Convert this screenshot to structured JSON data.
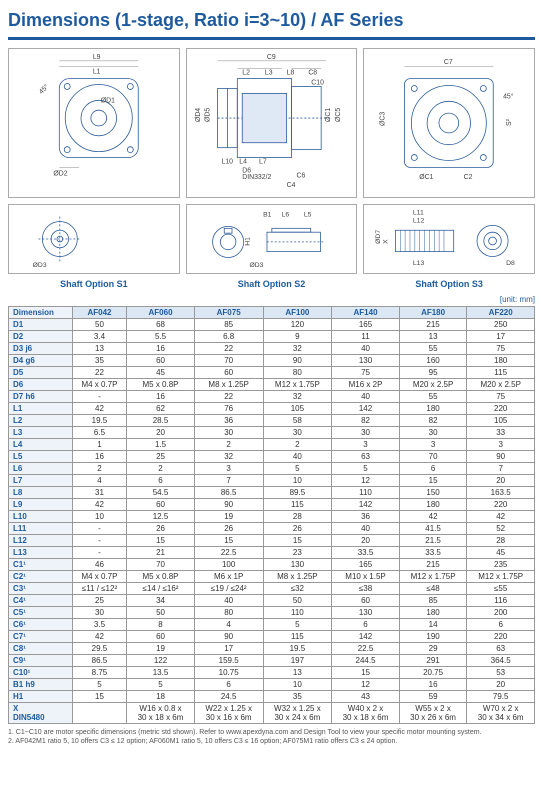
{
  "title": "Dimensions (1-stage, Ratio i=3~10) / AF Series",
  "unit_label": "[unit: mm]",
  "diagram_labels": {
    "left_top1": "L9",
    "left_top2": "L1",
    "left_d1": "ØD1",
    "left_d2": "ØD2",
    "mid_c9": "C9",
    "mid_l2": "L2",
    "mid_l3": "L3",
    "mid_l8": "L8",
    "mid_c8": "C8",
    "mid_c10": "C10",
    "mid_d4": "ØD4",
    "mid_d5": "ØD5",
    "mid_d6": "D6",
    "mid_din": "DIN332/2",
    "mid_l10": "L10",
    "mid_l4": "L4",
    "mid_l7": "L7",
    "mid_c6": "C6",
    "mid_c4": "C4",
    "mid_c1": "ØC1",
    "mid_c5": "ØC5",
    "right_c7": "C7",
    "right_c3": "ØC3",
    "right_c1": "ØC1",
    "right_c2": "C2",
    "right_45": "45°"
  },
  "shaft_labels": {
    "s1": "Shaft Option S1",
    "s2": "Shaft Option S2",
    "s3": "Shaft Option S3",
    "s1_d3": "ØD3",
    "s2_b1": "B1",
    "s2_l6": "L6",
    "s2_l5": "L5",
    "s2_h1": "H1",
    "s2_d3": "ØD3",
    "s3_l11": "L11",
    "s3_l12": "L12",
    "s3_l13": "L13",
    "s3_d8": "D8",
    "s3_d7": "ØD7",
    "s3_x": "X"
  },
  "table": {
    "headers": [
      "Dimension",
      "AF042",
      "AF060",
      "AF075",
      "AF100",
      "AF140",
      "AF180",
      "AF220"
    ],
    "rows": [
      [
        "D1",
        "50",
        "68",
        "85",
        "120",
        "165",
        "215",
        "250"
      ],
      [
        "D2",
        "3.4",
        "5.5",
        "6.8",
        "9",
        "11",
        "13",
        "17"
      ],
      [
        "D3  j6",
        "13",
        "16",
        "22",
        "32",
        "40",
        "55",
        "75"
      ],
      [
        "D4  g6",
        "35",
        "60",
        "70",
        "90",
        "130",
        "160",
        "180"
      ],
      [
        "D5",
        "22",
        "45",
        "60",
        "80",
        "75",
        "95",
        "115"
      ],
      [
        "D6",
        "M4 x 0.7P",
        "M5 x 0.8P",
        "M8 x 1.25P",
        "M12 x 1.75P",
        "M16 x 2P",
        "M20 x 2.5P",
        "M20 x 2.5P"
      ],
      [
        "D7  h6",
        "-",
        "16",
        "22",
        "32",
        "40",
        "55",
        "75"
      ],
      [
        "L1",
        "42",
        "62",
        "76",
        "105",
        "142",
        "180",
        "220"
      ],
      [
        "L2",
        "19.5",
        "28.5",
        "36",
        "58",
        "82",
        "82",
        "105"
      ],
      [
        "L3",
        "6.5",
        "20",
        "30",
        "30",
        "30",
        "30",
        "33"
      ],
      [
        "L4",
        "1",
        "1.5",
        "2",
        "2",
        "3",
        "3",
        "3"
      ],
      [
        "L5",
        "16",
        "25",
        "32",
        "40",
        "63",
        "70",
        "90"
      ],
      [
        "L6",
        "2",
        "2",
        "3",
        "5",
        "5",
        "6",
        "7"
      ],
      [
        "L7",
        "4",
        "6",
        "7",
        "10",
        "12",
        "15",
        "20"
      ],
      [
        "L8",
        "31",
        "54.5",
        "86.5",
        "89.5",
        "110",
        "150",
        "163.5"
      ],
      [
        "L9",
        "42",
        "60",
        "90",
        "115",
        "142",
        "180",
        "220"
      ],
      [
        "L10",
        "10",
        "12.5",
        "19",
        "28",
        "36",
        "42",
        "42"
      ],
      [
        "L11",
        "-",
        "26",
        "26",
        "26",
        "40",
        "41.5",
        "52"
      ],
      [
        "L12",
        "-",
        "15",
        "15",
        "15",
        "20",
        "21.5",
        "28"
      ],
      [
        "L13",
        "-",
        "21",
        "22.5",
        "23",
        "33.5",
        "33.5",
        "45"
      ],
      [
        "C1¹",
        "46",
        "70",
        "100",
        "130",
        "165",
        "215",
        "235"
      ],
      [
        "C2¹",
        "M4 x 0.7P",
        "M5 x 0.8P",
        "M6 x 1P",
        "M8 x 1.25P",
        "M10 x 1.5P",
        "M12 x 1.75P",
        "M12 x 1.75P"
      ],
      [
        "C3¹",
        "≤11 / ≤12²",
        "≤14 / ≤16²",
        "≤19 / ≤24²",
        "≤32",
        "≤38",
        "≤48",
        "≤55"
      ],
      [
        "C4¹",
        "25",
        "34",
        "40",
        "50",
        "60",
        "85",
        "116"
      ],
      [
        "C5¹",
        "30",
        "50",
        "80",
        "110",
        "130",
        "180",
        "200"
      ],
      [
        "C6¹",
        "3.5",
        "8",
        "4",
        "5",
        "6",
        "14",
        "6"
      ],
      [
        "C7¹",
        "42",
        "60",
        "90",
        "115",
        "142",
        "190",
        "220"
      ],
      [
        "C8¹",
        "29.5",
        "19",
        "17",
        "19.5",
        "22.5",
        "29",
        "63"
      ],
      [
        "C9¹",
        "86.5",
        "122",
        "159.5",
        "197",
        "244.5",
        "291",
        "364.5"
      ],
      [
        "C10¹",
        "8.75",
        "13.5",
        "10.75",
        "13",
        "15",
        "20.75",
        "53"
      ],
      [
        "B1  h9",
        "5",
        "5",
        "6",
        "10",
        "12",
        "16",
        "20"
      ],
      [
        "H1",
        "15",
        "18",
        "24.5",
        "35",
        "43",
        "59",
        "79.5"
      ],
      [
        "X\nDIN5480",
        "",
        "W16 x 0.8 x\n30 x 18 x 6m",
        "W22 x 1.25 x\n30 x 16 x 6m",
        "W32 x 1.25 x\n30 x 24 x 6m",
        "W40 x 2 x\n30 x 18 x 6m",
        "W55 x 2 x\n30 x 26 x 6m",
        "W70 x 2 x\n30 x 34 x 6m"
      ]
    ]
  },
  "footnotes": [
    "1. C1~C10 are motor specific dimensions (metric std shown). Refer to www.apexdyna.com and Design Tool to view your specific motor mounting system.",
    "2. AF042M1 ratio 5, 10 offers C3 ≤ 12 option; AF060M1 ratio 5, 10 offers C3 ≤ 16 option; AF075M1 ratio offers C3 ≤ 24 option."
  ],
  "colors": {
    "heading": "#1e5b9e",
    "header_bg": "#dbe7f3",
    "rowhead_bg": "#eef3f9",
    "border": "#999999"
  }
}
